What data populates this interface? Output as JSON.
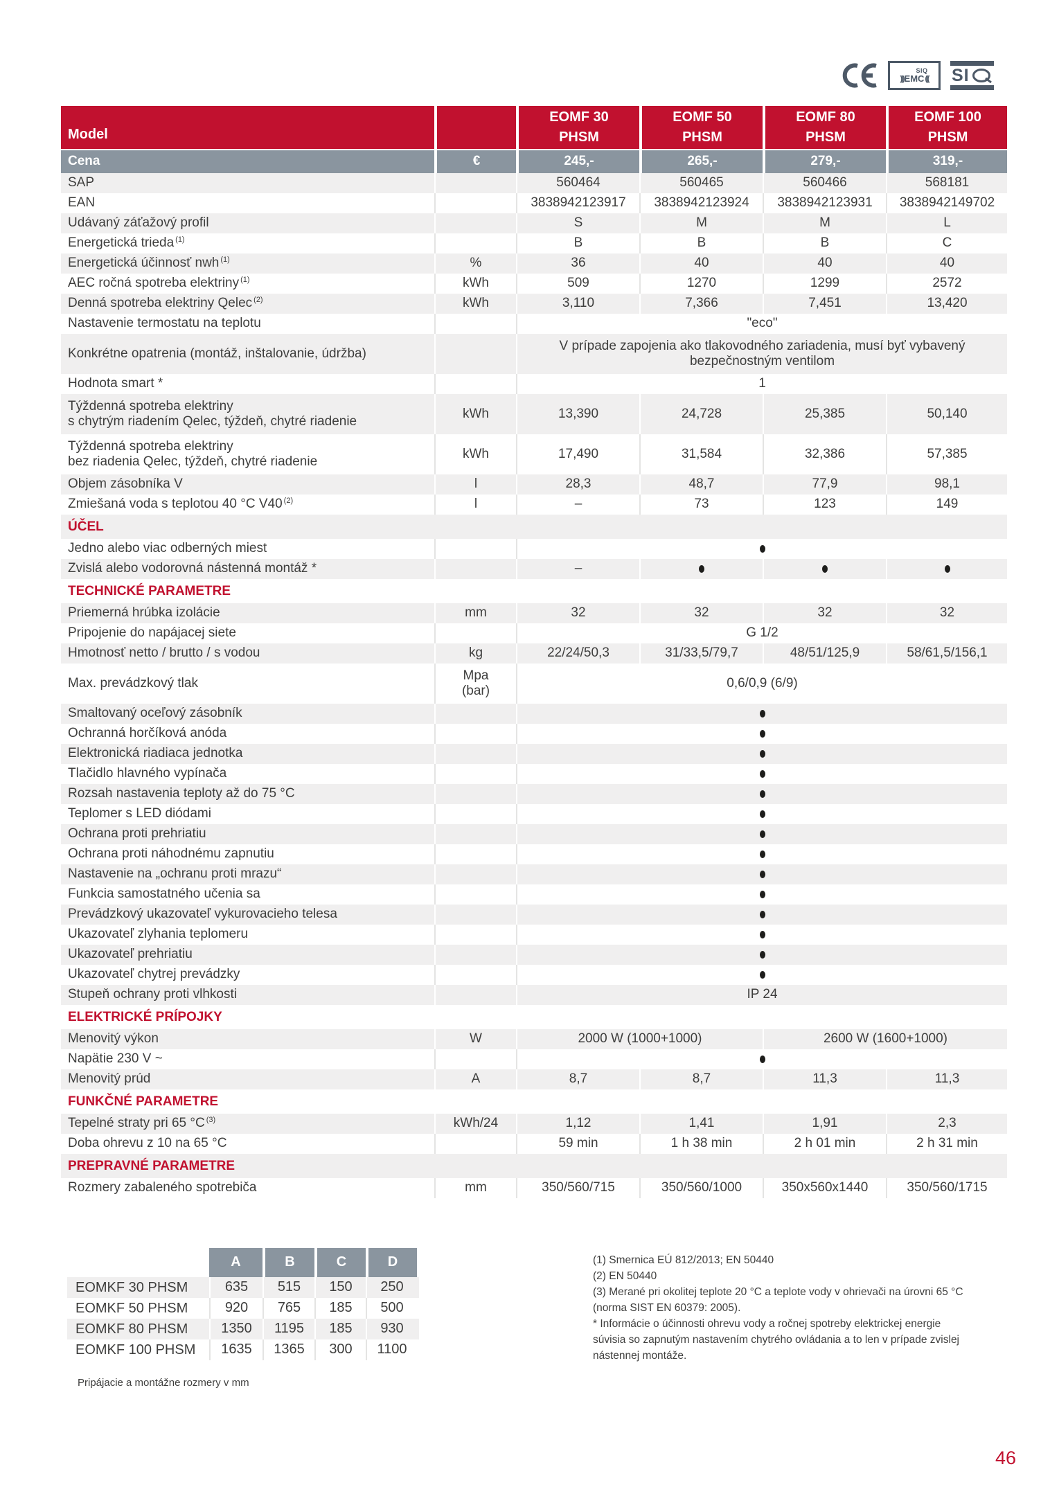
{
  "page": {
    "number": "46"
  },
  "certifications": {
    "ce_mark": "CE",
    "emc_box": {
      "top": "SIQ",
      "main": "EMC"
    },
    "siq": {
      "si": "SI",
      "q": "Q"
    }
  },
  "spec_table": {
    "corner_label": "Model",
    "columns": [
      {
        "name": "EOMF 30",
        "sub": "PHSM"
      },
      {
        "name": "EOMF 50",
        "sub": "PHSM"
      },
      {
        "name": "EOMF 80",
        "sub": "PHSM"
      },
      {
        "name": "EOMF 100",
        "sub": "PHSM"
      }
    ],
    "price_row": {
      "label": "Cena",
      "unit": "€",
      "values": [
        "245,-",
        "265,-",
        "279,-",
        "319,-"
      ]
    },
    "rows": [
      {
        "label": "SAP",
        "values": [
          "560464",
          "560465",
          "560466",
          "568181"
        ]
      },
      {
        "label": "EAN",
        "values": [
          "3838942123917",
          "3838942123924",
          "3838942123931",
          "3838942149702"
        ]
      },
      {
        "label": "Udávaný záťažový profil",
        "values": [
          "S",
          "M",
          "M",
          "L"
        ]
      },
      {
        "label": "Energetická trieda",
        "sup": "(1)",
        "values": [
          "B",
          "B",
          "B",
          "C"
        ]
      },
      {
        "label": "Energetická účinnosť nwh",
        "sup": "(1)",
        "unit": "%",
        "values": [
          "36",
          "40",
          "40",
          "40"
        ]
      },
      {
        "label": "AEC ročná spotreba elektriny",
        "sup": "(1)",
        "unit": "kWh",
        "values": [
          "509",
          "1270",
          "1299",
          "2572"
        ]
      },
      {
        "label": "Denná spotreba elektriny Qelec",
        "sup": "(2)",
        "unit": "kWh",
        "values": [
          "3,110",
          "7,366",
          "7,451",
          "13,420"
        ]
      },
      {
        "label": "Nastavenie termostatu na teplotu",
        "span": "\"eco\""
      },
      {
        "label": "Konkrétne opatrenia (montáž, inštalovanie, údržba)",
        "span_lines": [
          "V prípade zapojenia ako tlakovodného zariadenia, musí byť vybavený",
          "bezpečnostným ventilom"
        ]
      },
      {
        "label": "Hodnota smart *",
        "span": "1"
      },
      {
        "label": "Týždenná spotreba elektriny",
        "label2": "s chytrým riadením Qelec, týždeň, chytré riadenie",
        "unit": "kWh",
        "values": [
          "13,390",
          "24,728",
          "25,385",
          "50,140"
        ]
      },
      {
        "label": "Týždenná spotreba elektriny",
        "label2": "bez riadenia Qelec, týždeň, chytré riadenie",
        "unit": "kWh",
        "values": [
          "17,490",
          "31,584",
          "32,386",
          "57,385"
        ]
      },
      {
        "label": "Objem zásobníka V",
        "unit": "l",
        "values": [
          "28,3",
          "48,7",
          "77,9",
          "98,1"
        ]
      },
      {
        "label": "Zmiešaná voda s teplotou 40 °C V40",
        "sup": "(2)",
        "unit": "l",
        "values": [
          "–",
          "73",
          "123",
          "149"
        ]
      },
      {
        "section": "ÚČEL"
      },
      {
        "label": "Jedno alebo viac odberných miest",
        "span": "•"
      },
      {
        "label": "Zvislá alebo vodorovná nástenná montáž *",
        "values": [
          "–",
          "•",
          "•",
          "•"
        ]
      },
      {
        "section": "TECHNICKÉ PARAMETRE"
      },
      {
        "label": "Priemerná hrúbka izolácie",
        "unit": "mm",
        "values": [
          "32",
          "32",
          "32",
          "32"
        ]
      },
      {
        "label": "Pripojenie do napájacej siete",
        "span": "G 1/2"
      },
      {
        "label": "Hmotnosť netto / brutto / s vodou",
        "unit": "kg",
        "values": [
          "22/24/50,3",
          "31/33,5/79,7",
          "48/51/125,9",
          "58/61,5/156,1"
        ]
      },
      {
        "label": "Max. prevádzkový tlak",
        "unit_lines": [
          "Mpa",
          "(bar)"
        ],
        "span": "0,6/0,9  (6/9)"
      },
      {
        "label": "Smaltovaný oceľový zásobník",
        "span": "•"
      },
      {
        "label": "Ochranná horčíková anóda",
        "span": "•"
      },
      {
        "label": "Elektronická riadiaca jednotka",
        "span": "•"
      },
      {
        "label": "Tlačidlo hlavného vypínača",
        "span": "•"
      },
      {
        "label": "Rozsah nastavenia teploty až do 75 °C",
        "span": "•"
      },
      {
        "label": "Teplomer s LED diódami",
        "span": "•"
      },
      {
        "label": "Ochrana proti prehriatiu",
        "span": "•"
      },
      {
        "label": "Ochrana proti náhodnému zapnutiu",
        "span": "•"
      },
      {
        "label": "Nastavenie na „ochranu proti mrazu“",
        "span": "•"
      },
      {
        "label": "Funkcia samostatného učenia sa",
        "span": "•"
      },
      {
        "label": "Prevádzkový ukazovateľ vykurovacieho telesa",
        "span": "•"
      },
      {
        "label": "Ukazovateľ zlyhania teplomeru",
        "span": "•"
      },
      {
        "label": "Ukazovateľ prehriatiu",
        "span": "•"
      },
      {
        "label": "Ukazovateľ chytrej prevádzky",
        "span": "•"
      },
      {
        "label": "Stupeň ochrany proti vlhkosti",
        "span": "IP 24"
      },
      {
        "section": "ELEKTRICKÉ PRÍPOJKY"
      },
      {
        "label": "Menovitý výkon",
        "unit": "W",
        "span2": [
          "2000 W (1000+1000)",
          "2600 W (1600+1000)"
        ]
      },
      {
        "label": "Napätie 230 V ~",
        "span": "•"
      },
      {
        "label": "Menovitý prúd",
        "unit": "A",
        "values": [
          "8,7",
          "8,7",
          "11,3",
          "11,3"
        ]
      },
      {
        "section": "FUNKČNÉ PARAMETRE"
      },
      {
        "label": "Tepelné straty pri 65 °C",
        "sup": "(3)",
        "unit": "kWh/24",
        "values": [
          "1,12",
          "1,41",
          "1,91",
          "2,3"
        ]
      },
      {
        "label": "Doba ohrevu z 10 na 65 °C",
        "values": [
          "59 min",
          "1 h 38 min",
          "2 h 01 min",
          "2 h 31 min"
        ]
      },
      {
        "section": "PREPRAVNÉ PARAMETRE"
      },
      {
        "label": "Rozmery zabaleného spotrebiča",
        "unit": "mm",
        "values": [
          "350/560/715",
          "350/560/1000",
          "350x560x1440",
          "350/560/1715"
        ]
      }
    ]
  },
  "dimensions_table": {
    "columns": [
      "A",
      "B",
      "C",
      "D"
    ],
    "rows": [
      {
        "label": "EOMKF 30 PHSM",
        "values": [
          "635",
          "515",
          "150",
          "250"
        ]
      },
      {
        "label": "EOMKF 50 PHSM",
        "values": [
          "920",
          "765",
          "185",
          "500"
        ]
      },
      {
        "label": "EOMKF 80 PHSM",
        "values": [
          "1350",
          "1195",
          "185",
          "930"
        ]
      },
      {
        "label": "EOMKF 100 PHSM",
        "values": [
          "1635",
          "1365",
          "300",
          "1100"
        ]
      }
    ]
  },
  "dimensions_caption": "Pripájacie a montážne rozmery v mm",
  "footnotes": [
    "(1) Smernica EÚ 812/2013; EN 50440",
    "(2) EN 50440",
    "(3) Merané pri okolitej teplote 20 °C a teplote vody v ohrievači na úrovni 65 °C",
    "(norma SIST EN 60379: 2005).",
    "* Informácie o účinnosti ohrevu vody a ročnej spotreby elektrickej energie",
    "súvisia so zapnutým nastavením chytrého ovládania a to len v prípade zvislej",
    "nástennej montáže."
  ],
  "colors": {
    "brand_red": "#C1112F",
    "header_gray": "#8A959F",
    "row_band": "#F0EFEF",
    "text": "#3E3E3D"
  }
}
